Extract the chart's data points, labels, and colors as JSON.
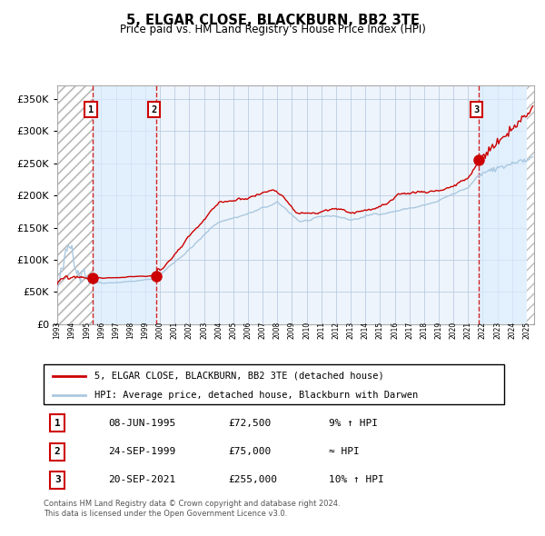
{
  "title": "5, ELGAR CLOSE, BLACKBURN, BB2 3TE",
  "subtitle": "Price paid vs. HM Land Registry's House Price Index (HPI)",
  "ylim": [
    0,
    370000
  ],
  "yticks": [
    0,
    50000,
    100000,
    150000,
    200000,
    250000,
    300000,
    350000
  ],
  "xlim_start": 1993.0,
  "xlim_end": 2025.5,
  "sale_dates": [
    1995.44,
    1999.73,
    2021.72
  ],
  "sale_prices": [
    72500,
    75000,
    255000
  ],
  "sale_labels": [
    "1",
    "2",
    "3"
  ],
  "legend_line1": "5, ELGAR CLOSE, BLACKBURN, BB2 3TE (detached house)",
  "legend_line2": "HPI: Average price, detached house, Blackburn with Darwen",
  "table_rows": [
    [
      "1",
      "08-JUN-1995",
      "£72,500",
      "9% ↑ HPI"
    ],
    [
      "2",
      "24-SEP-1999",
      "£75,000",
      "≈ HPI"
    ],
    [
      "3",
      "20-SEP-2021",
      "£255,000",
      "10% ↑ HPI"
    ]
  ],
  "footer1": "Contains HM Land Registry data © Crown copyright and database right 2024.",
  "footer2": "This data is licensed under the Open Government Licence v3.0.",
  "line_color": "#cc0000",
  "hpi_color": "#aac8e0",
  "marker_color": "#cc0000",
  "dashed_color": "#cc0000",
  "shaded_color": "#ddeeff",
  "grid_color": "#b0c4de",
  "bg_color": "#eef4fb"
}
